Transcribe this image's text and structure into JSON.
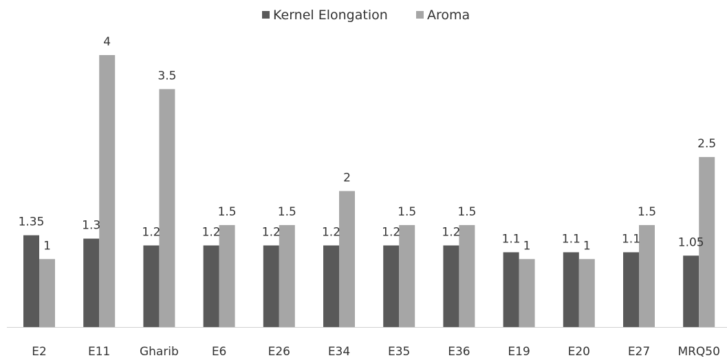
{
  "chart_data": {
    "type": "bar",
    "categories": [
      "E2",
      "E11",
      "Gharib",
      "E6",
      "E26",
      "E34",
      "E35",
      "E36",
      "E19",
      "E20",
      "E27",
      "MRQ50"
    ],
    "series": [
      {
        "name": "Kernel Elongation",
        "color": "#595959",
        "values": [
          1.35,
          1.3,
          1.2,
          1.2,
          1.2,
          1.2,
          1.2,
          1.2,
          1.1,
          1.1,
          1.1,
          1.05
        ],
        "labels": [
          "1.35",
          "1.3",
          "1.2",
          "1.2",
          "1.2",
          "1.2",
          "1.2",
          "1.2",
          "1.1",
          "1.1",
          "1.1",
          "1.05"
        ]
      },
      {
        "name": "Aroma",
        "color": "#a6a6a6",
        "values": [
          1,
          4,
          3.5,
          1.5,
          1.5,
          2,
          1.5,
          1.5,
          1,
          1,
          1.5,
          2.5
        ],
        "labels": [
          "1",
          "4",
          "3.5",
          "1.5",
          "1.5",
          "2",
          "1.5",
          "1.5",
          "1",
          "1",
          "1.5",
          "2.5"
        ]
      }
    ],
    "title": "",
    "xlabel": "",
    "ylabel": "",
    "ylim": [
      0,
      4
    ],
    "grid": false,
    "legend_position": "top-center"
  }
}
